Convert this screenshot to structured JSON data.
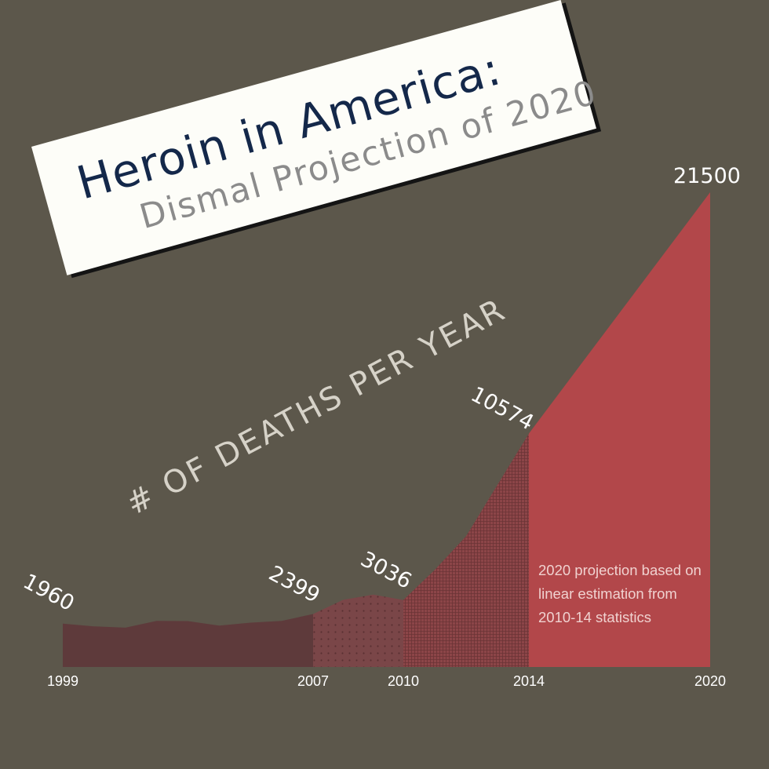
{
  "title": {
    "main": "Heroin in America:",
    "sub": "Dismal Projection of 2020"
  },
  "colors": {
    "background": "#5c574b",
    "early": "#5e3a3b",
    "mid_dots": "#7a4648",
    "mid_grid": "#8c4548",
    "projection": "#b2474a",
    "label_text": "#ffffff",
    "note_text": "#f0d2d0"
  },
  "chart_data": {
    "type": "area",
    "ylabel": "# OF DEATHS PER YEAR",
    "x_tick_labels": [
      "1999",
      "2007",
      "2010",
      "2014",
      "2020"
    ],
    "ylim": [
      0,
      21500
    ],
    "series": [
      {
        "x": [
          1999,
          2000,
          2001,
          2002,
          2003,
          2004,
          2005,
          2006,
          2007,
          2008,
          2009,
          2010,
          2011,
          2012,
          2013,
          2014,
          2020
        ],
        "values": [
          1960,
          1842,
          1779,
          2089,
          2080,
          1878,
          2009,
          2088,
          2399,
          3041,
          3278,
          3036,
          4397,
          5925,
          8257,
          10574,
          21500
        ]
      }
    ],
    "segments": [
      {
        "from": 1999,
        "to": 2007,
        "style": "solid-dark"
      },
      {
        "from": 2007,
        "to": 2010,
        "style": "dotted"
      },
      {
        "from": 2010,
        "to": 2014,
        "style": "grid"
      },
      {
        "from": 2014,
        "to": 2020,
        "style": "projection"
      }
    ],
    "data_labels": [
      {
        "x": 1999,
        "value": "1960"
      },
      {
        "x": 2007,
        "value": "2399"
      },
      {
        "x": 2010,
        "value": "3036"
      },
      {
        "x": 2014,
        "value": "10574"
      },
      {
        "x": 2020,
        "value": "21500"
      }
    ],
    "annotation": "2020 projection based on linear estimation from 2010-14 statistics"
  }
}
